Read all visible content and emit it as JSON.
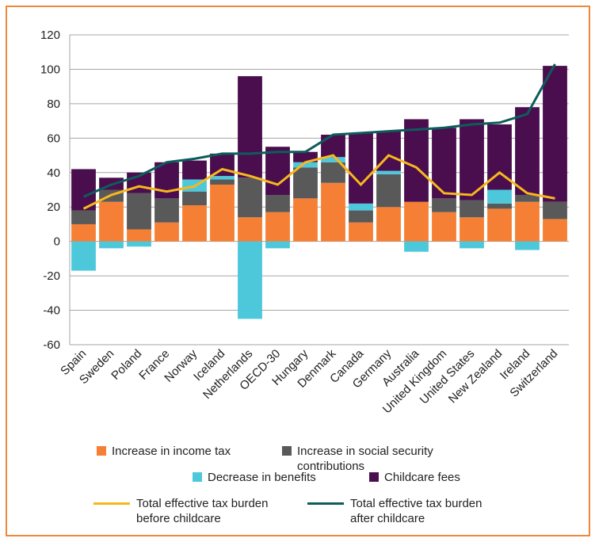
{
  "chart_data": {
    "type": "bar",
    "categories": [
      "Spain",
      "Sweden",
      "Poland",
      "France",
      "Norway",
      "Iceland",
      "Netherlands",
      "OECD-30",
      "Hungary",
      "Denmark",
      "Canada",
      "Germany",
      "Australia",
      "United Kingdom",
      "United States",
      "New Zealand",
      "Ireland",
      "Switzerland"
    ],
    "series": [
      {
        "name": "Increase in income tax",
        "color": "#f58035",
        "values": [
          10,
          23,
          7,
          11,
          21,
          33,
          14,
          17,
          25,
          34,
          11,
          20,
          23,
          17,
          14,
          19,
          23,
          13
        ]
      },
      {
        "name": "Increase in social security contributions",
        "color": "#595959",
        "values": [
          8,
          7,
          21,
          14,
          8,
          3,
          23,
          10,
          18,
          12,
          7,
          19,
          0,
          8,
          10,
          3,
          4,
          10
        ]
      },
      {
        "name": "Decrease in benefits",
        "color": "#4dc8db",
        "values": [
          -17,
          -4,
          -3,
          0,
          7,
          2,
          -45,
          -4,
          3,
          3,
          4,
          2,
          -6,
          0,
          -4,
          8,
          -5,
          0
        ]
      },
      {
        "name": "Childcare fees",
        "color": "#4a0e4e",
        "values": [
          24,
          7,
          12,
          21,
          11,
          13,
          59,
          28,
          6,
          13,
          41,
          23,
          48,
          41,
          47,
          38,
          51,
          79
        ]
      },
      {
        "name": "Total effective tax burden before childcare",
        "color": "#f7b81c",
        "type": "line",
        "values": [
          19,
          27,
          32,
          29,
          32,
          42,
          38,
          33,
          46,
          50,
          33,
          50,
          43,
          28,
          27,
          40,
          28,
          25
        ]
      },
      {
        "name": "Total effective tax burden after childcare",
        "color": "#0d5c5c",
        "type": "line",
        "values": [
          26,
          33,
          38,
          46,
          48,
          51,
          51,
          52,
          52,
          62,
          63,
          64,
          65,
          66,
          68,
          69,
          74,
          103
        ]
      }
    ],
    "ylim": [
      -60,
      120
    ],
    "yticks": [
      -60,
      -40,
      -20,
      0,
      20,
      40,
      60,
      80,
      100,
      120
    ],
    "grid": true
  }
}
